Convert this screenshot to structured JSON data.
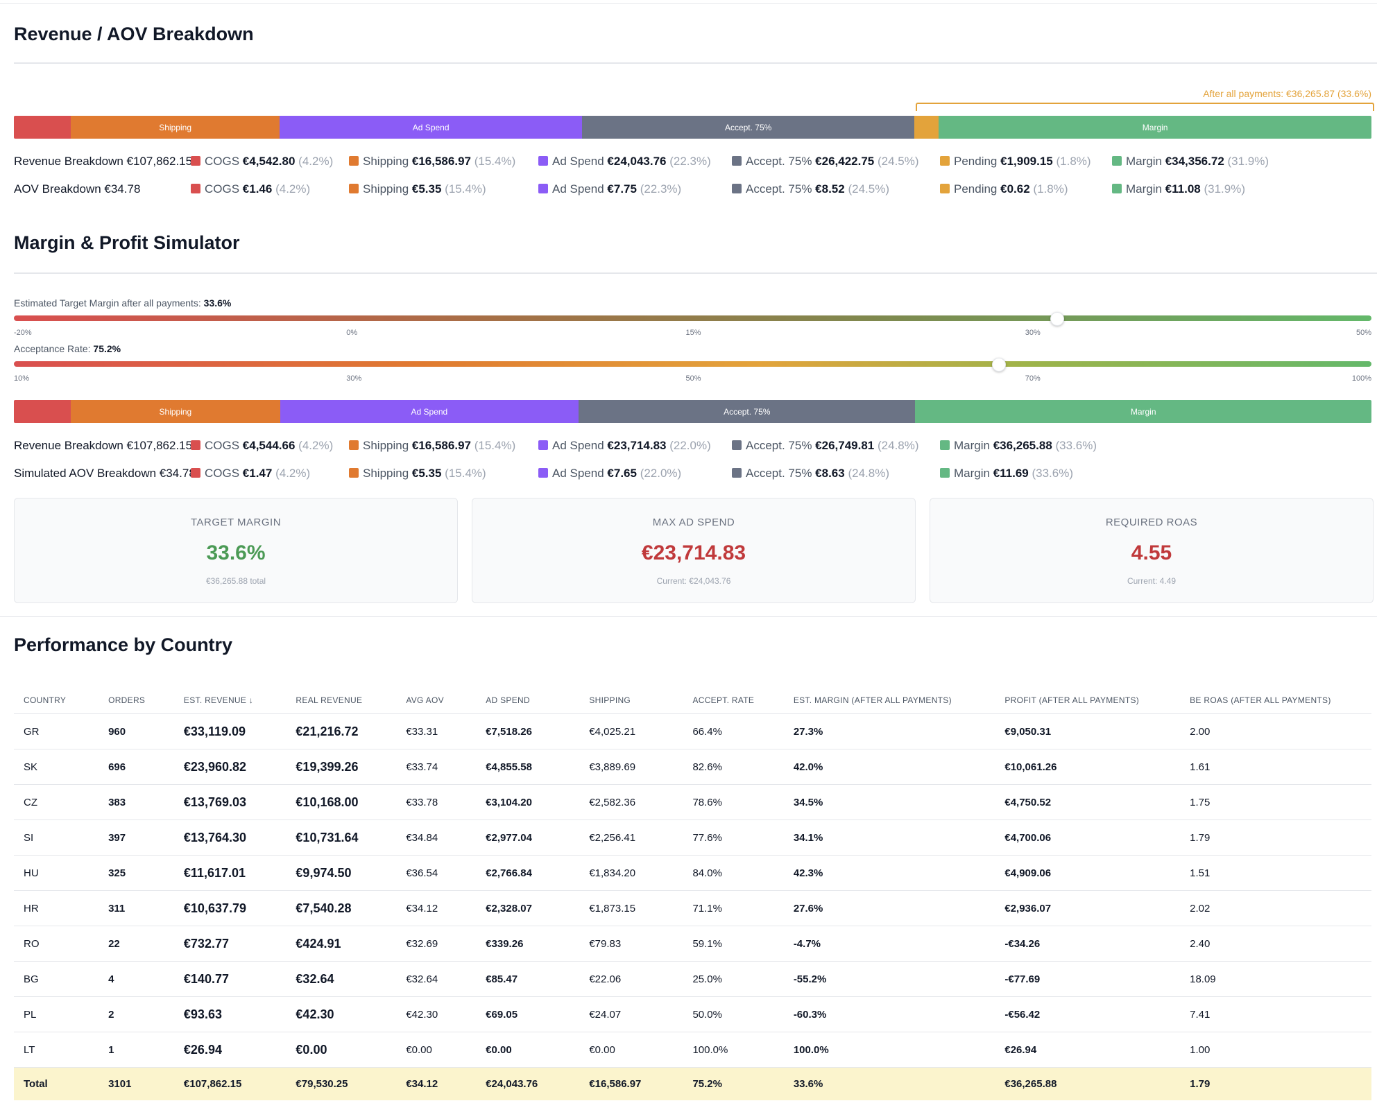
{
  "revenue_section": {
    "title": "Revenue / AOV Breakdown",
    "after_all_payments": "After all payments: €36,265.87 (33.6%)",
    "bar": [
      {
        "label": "",
        "color": "#d94f4f",
        "fraction": 0.042
      },
      {
        "label": "Shipping",
        "color": "#e07a30",
        "fraction": 0.154
      },
      {
        "label": "Ad Spend",
        "color": "#8b5cf6",
        "fraction": 0.223
      },
      {
        "label": "Accept. 75%",
        "color": "#6b7385",
        "fraction": 0.245
      },
      {
        "label": "",
        "color": "#e3a33b",
        "fraction": 0.018
      },
      {
        "label": "Margin",
        "color": "#64b883",
        "fraction": 0.319
      }
    ],
    "rows": [
      {
        "label": "Revenue Breakdown €107,862.15",
        "items": [
          {
            "name": "COGS",
            "value": "€4,542.80",
            "pct": "(4.2%)",
            "color": "#d94f4f"
          },
          {
            "name": "Shipping",
            "value": "€16,586.97",
            "pct": "(15.4%)",
            "color": "#e07a30"
          },
          {
            "name": "Ad Spend",
            "value": "€24,043.76",
            "pct": "(22.3%)",
            "color": "#8b5cf6"
          },
          {
            "name": "Accept. 75%",
            "value": "€26,422.75",
            "pct": "(24.5%)",
            "color": "#6b7385"
          },
          {
            "name": "Pending",
            "value": "€1,909.15",
            "pct": "(1.8%)",
            "color": "#e3a33b"
          },
          {
            "name": "Margin",
            "value": "€34,356.72",
            "pct": "(31.9%)",
            "color": "#64b883"
          }
        ]
      },
      {
        "label": "AOV Breakdown €34.78",
        "items": [
          {
            "name": "COGS",
            "value": "€1.46",
            "pct": "(4.2%)",
            "color": "#d94f4f"
          },
          {
            "name": "Shipping",
            "value": "€5.35",
            "pct": "(15.4%)",
            "color": "#e07a30"
          },
          {
            "name": "Ad Spend",
            "value": "€7.75",
            "pct": "(22.3%)",
            "color": "#8b5cf6"
          },
          {
            "name": "Accept. 75%",
            "value": "€8.52",
            "pct": "(24.5%)",
            "color": "#6b7385"
          },
          {
            "name": "Pending",
            "value": "€0.62",
            "pct": "(1.8%)",
            "color": "#e3a33b"
          },
          {
            "name": "Margin",
            "value": "€11.08",
            "pct": "(31.9%)",
            "color": "#64b883"
          }
        ]
      }
    ]
  },
  "simulator": {
    "title": "Margin & Profit Simulator",
    "margin_slider": {
      "label": "Estimated Target Margin after all payments:",
      "value": "33.6%",
      "position_fraction": 0.768,
      "ticks": [
        "-20%",
        "0%",
        "15%",
        "30%",
        "50%"
      ]
    },
    "acceptance_slider": {
      "label": "Acceptance Rate:",
      "value": "75.2%",
      "position_fraction": 0.725,
      "ticks": [
        "10%",
        "30%",
        "50%",
        "70%",
        "100%"
      ]
    },
    "bar": [
      {
        "label": "",
        "color": "#d94f4f",
        "fraction": 0.042
      },
      {
        "label": "Shipping",
        "color": "#e07a30",
        "fraction": 0.154
      },
      {
        "label": "Ad Spend",
        "color": "#8b5cf6",
        "fraction": 0.22
      },
      {
        "label": "Accept. 75%",
        "color": "#6b7385",
        "fraction": 0.248
      },
      {
        "label": "Margin",
        "color": "#64b883",
        "fraction": 0.336
      }
    ],
    "rows": [
      {
        "label": "Revenue Breakdown €107,862.15",
        "items": [
          {
            "name": "COGS",
            "value": "€4,544.66",
            "pct": "(4.2%)",
            "color": "#d94f4f"
          },
          {
            "name": "Shipping",
            "value": "€16,586.97",
            "pct": "(15.4%)",
            "color": "#e07a30"
          },
          {
            "name": "Ad Spend",
            "value": "€23,714.83",
            "pct": "(22.0%)",
            "color": "#8b5cf6"
          },
          {
            "name": "Accept. 75%",
            "value": "€26,749.81",
            "pct": "(24.8%)",
            "color": "#6b7385"
          },
          {
            "name": "Margin",
            "value": "€36,265.88",
            "pct": "(33.6%)",
            "color": "#64b883"
          }
        ]
      },
      {
        "label": "Simulated AOV Breakdown €34.78",
        "items": [
          {
            "name": "COGS",
            "value": "€1.47",
            "pct": "(4.2%)",
            "color": "#d94f4f"
          },
          {
            "name": "Shipping",
            "value": "€5.35",
            "pct": "(15.4%)",
            "color": "#e07a30"
          },
          {
            "name": "Ad Spend",
            "value": "€7.65",
            "pct": "(22.0%)",
            "color": "#8b5cf6"
          },
          {
            "name": "Accept. 75%",
            "value": "€8.63",
            "pct": "(24.8%)",
            "color": "#6b7385"
          },
          {
            "name": "Margin",
            "value": "€11.69",
            "pct": "(33.6%)",
            "color": "#64b883"
          }
        ]
      }
    ],
    "cards": [
      {
        "title": "TARGET MARGIN",
        "value": "33.6%",
        "sub": "€36,265.88 total",
        "color": "#4b9a55"
      },
      {
        "title": "MAX AD SPEND",
        "value": "€23,714.83",
        "sub": "Current: €24,043.76",
        "color": "#c0393b"
      },
      {
        "title": "REQUIRED ROAS",
        "value": "4.55",
        "sub": "Current: 4.49",
        "color": "#c0393b"
      }
    ]
  },
  "country_table": {
    "title": "Performance by Country",
    "headers": [
      "COUNTRY",
      "ORDERS",
      "EST. REVENUE ↓",
      "REAL REVENUE",
      "AVG AOV",
      "AD SPEND",
      "SHIPPING",
      "ACCEPT. RATE",
      "EST. MARGIN (AFTER ALL PAYMENTS)",
      "PROFIT (AFTER ALL PAYMENTS)",
      "BE ROAS (AFTER ALL PAYMENTS)"
    ],
    "rows": [
      [
        "GR",
        "960",
        "€33,119.09",
        "€21,216.72",
        "€33.31",
        "€7,518.26",
        "€4,025.21",
        "66.4%",
        "27.3%",
        "€9,050.31",
        "2.00"
      ],
      [
        "SK",
        "696",
        "€23,960.82",
        "€19,399.26",
        "€33.74",
        "€4,855.58",
        "€3,889.69",
        "82.6%",
        "42.0%",
        "€10,061.26",
        "1.61"
      ],
      [
        "CZ",
        "383",
        "€13,769.03",
        "€10,168.00",
        "€33.78",
        "€3,104.20",
        "€2,582.36",
        "78.6%",
        "34.5%",
        "€4,750.52",
        "1.75"
      ],
      [
        "SI",
        "397",
        "€13,764.30",
        "€10,731.64",
        "€34.84",
        "€2,977.04",
        "€2,256.41",
        "77.6%",
        "34.1%",
        "€4,700.06",
        "1.79"
      ],
      [
        "HU",
        "325",
        "€11,617.01",
        "€9,974.50",
        "€36.54",
        "€2,766.84",
        "€1,834.20",
        "84.0%",
        "42.3%",
        "€4,909.06",
        "1.51"
      ],
      [
        "HR",
        "311",
        "€10,637.79",
        "€7,540.28",
        "€34.12",
        "€2,328.07",
        "€1,873.15",
        "71.1%",
        "27.6%",
        "€2,936.07",
        "2.02"
      ],
      [
        "RO",
        "22",
        "€732.77",
        "€424.91",
        "€32.69",
        "€339.26",
        "€79.83",
        "59.1%",
        "-4.7%",
        "-€34.26",
        "2.40"
      ],
      [
        "BG",
        "4",
        "€140.77",
        "€32.64",
        "€32.64",
        "€85.47",
        "€22.06",
        "25.0%",
        "-55.2%",
        "-€77.69",
        "18.09"
      ],
      [
        "PL",
        "2",
        "€93.63",
        "€42.30",
        "€42.30",
        "€69.05",
        "€24.07",
        "50.0%",
        "-60.3%",
        "-€56.42",
        "7.41"
      ],
      [
        "LT",
        "1",
        "€26.94",
        "€0.00",
        "€0.00",
        "€0.00",
        "€0.00",
        "100.0%",
        "100.0%",
        "€26.94",
        "1.00"
      ]
    ],
    "total": [
      "Total",
      "3101",
      "€107,862.15",
      "€79,530.25",
      "€34.12",
      "€24,043.76",
      "€16,586.97",
      "75.2%",
      "33.6%",
      "€36,265.88",
      "1.79"
    ]
  }
}
